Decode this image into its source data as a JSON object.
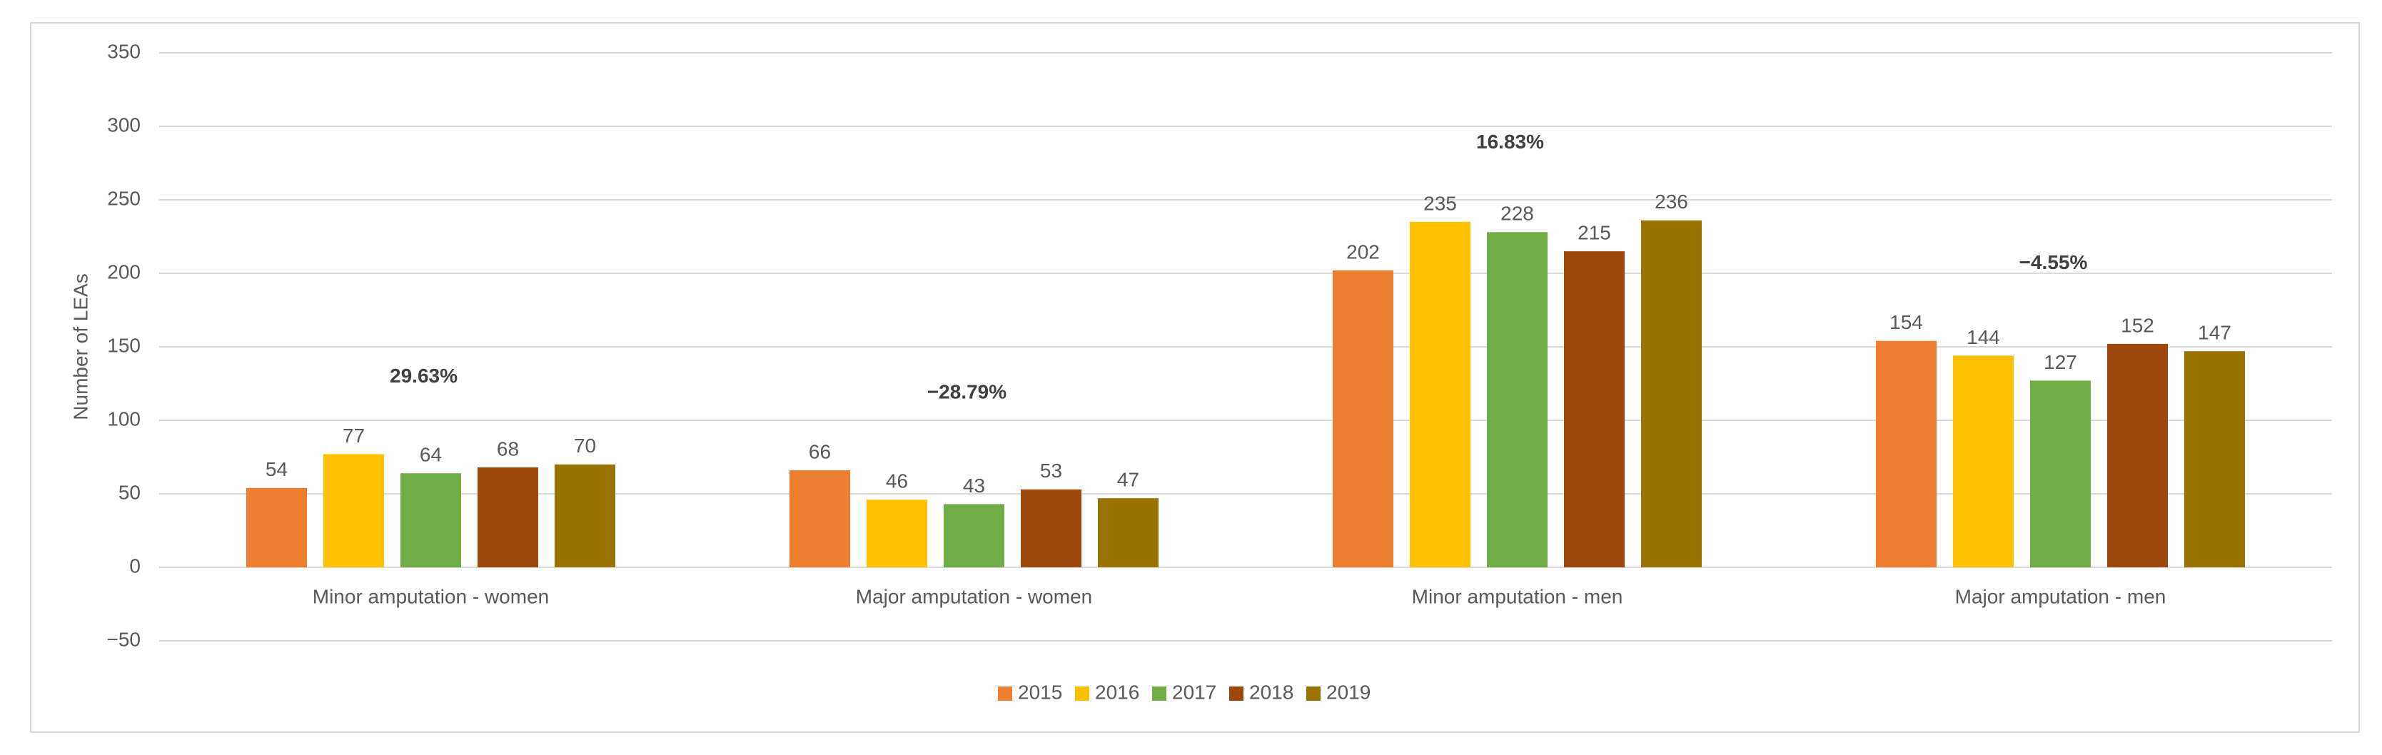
{
  "chart_data": {
    "type": "bar",
    "y_label": "Number of LEAs",
    "categories": [
      "Minor amputation - women",
      "Major amputation - women",
      "Minor amputation - men",
      "Major amputation - men"
    ],
    "series": [
      {
        "name": "2015",
        "color": "#ED7D31",
        "values": [
          54,
          66,
          202,
          154
        ]
      },
      {
        "name": "2016",
        "color": "#FFC000",
        "values": [
          77,
          46,
          235,
          144
        ]
      },
      {
        "name": "2017",
        "color": "#70AD47",
        "values": [
          64,
          43,
          228,
          127
        ]
      },
      {
        "name": "2018",
        "color": "#9E480E",
        "values": [
          68,
          53,
          215,
          152
        ]
      },
      {
        "name": "2019",
        "color": "#997300",
        "values": [
          70,
          47,
          236,
          147
        ]
      }
    ],
    "annotations": [
      "29.63%",
      "−28.79%",
      "16.83%",
      "−4.55%"
    ],
    "ylim": [
      -50,
      350
    ],
    "yticks": [
      {
        "value": -50,
        "label": "−50"
      },
      0,
      50,
      100,
      150,
      200,
      250,
      300,
      350
    ],
    "grid": true,
    "legend": "bottom"
  }
}
